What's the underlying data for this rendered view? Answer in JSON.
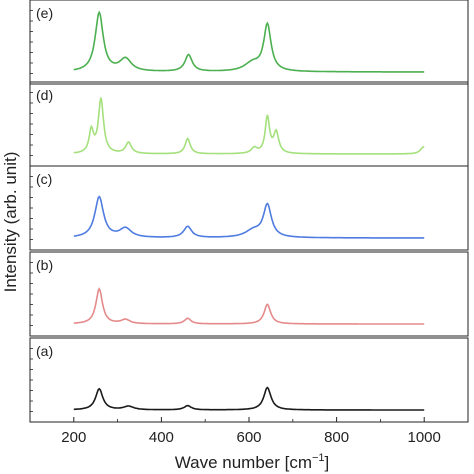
{
  "chart_data": {
    "type": "line",
    "xlabel": "Wave number [cm",
    "xlabel_superscript": "−1",
    "xlabel_suffix": "]",
    "ylabel": "Intensity (arb. unit)",
    "xlim": [
      100,
      1100
    ],
    "x_ticks": [
      200,
      400,
      600,
      800,
      1000
    ],
    "ylim": [
      0,
      1
    ],
    "grid": false,
    "panels": [
      {
        "label": "(e)",
        "color": "#4caf50",
        "baseline": 0.06,
        "peaks": [
          {
            "center": 258,
            "height": 0.84,
            "width": 11
          },
          {
            "center": 318,
            "height": 0.18,
            "width": 16
          },
          {
            "center": 462,
            "height": 0.24,
            "width": 10
          },
          {
            "center": 608,
            "height": 0.12,
            "width": 22
          },
          {
            "center": 642,
            "height": 0.66,
            "width": 10
          }
        ]
      },
      {
        "label": "(d)",
        "color": "#a4e07c",
        "baseline": 0.1,
        "peaks": [
          {
            "center": 240,
            "height": 0.32,
            "width": 6
          },
          {
            "center": 262,
            "height": 0.78,
            "width": 7
          },
          {
            "center": 325,
            "height": 0.16,
            "width": 8
          },
          {
            "center": 460,
            "height": 0.22,
            "width": 7
          },
          {
            "center": 612,
            "height": 0.08,
            "width": 8
          },
          {
            "center": 642,
            "height": 0.52,
            "width": 6
          },
          {
            "center": 662,
            "height": 0.3,
            "width": 7
          },
          {
            "center": 998,
            "height": 0.1,
            "width": 8
          }
        ]
      },
      {
        "label": "(c)",
        "color": "#4f7ce0",
        "baseline": 0.06,
        "peaks": [
          {
            "center": 258,
            "height": 0.58,
            "width": 12
          },
          {
            "center": 318,
            "height": 0.13,
            "width": 16
          },
          {
            "center": 460,
            "height": 0.16,
            "width": 11
          },
          {
            "center": 610,
            "height": 0.1,
            "width": 22
          },
          {
            "center": 642,
            "height": 0.46,
            "width": 11
          }
        ]
      },
      {
        "label": "(b)",
        "color": "#e58a8a",
        "baseline": 0.05,
        "peaks": [
          {
            "center": 258,
            "height": 0.5,
            "width": 9
          },
          {
            "center": 318,
            "height": 0.06,
            "width": 12
          },
          {
            "center": 460,
            "height": 0.08,
            "width": 9
          },
          {
            "center": 642,
            "height": 0.28,
            "width": 9
          }
        ]
      },
      {
        "label": "(a)",
        "color": "#1a1a1a",
        "baseline": 0.05,
        "peaks": [
          {
            "center": 258,
            "height": 0.3,
            "width": 10
          },
          {
            "center": 325,
            "height": 0.05,
            "width": 14
          },
          {
            "center": 460,
            "height": 0.06,
            "width": 10
          },
          {
            "center": 642,
            "height": 0.32,
            "width": 10
          }
        ]
      }
    ]
  }
}
